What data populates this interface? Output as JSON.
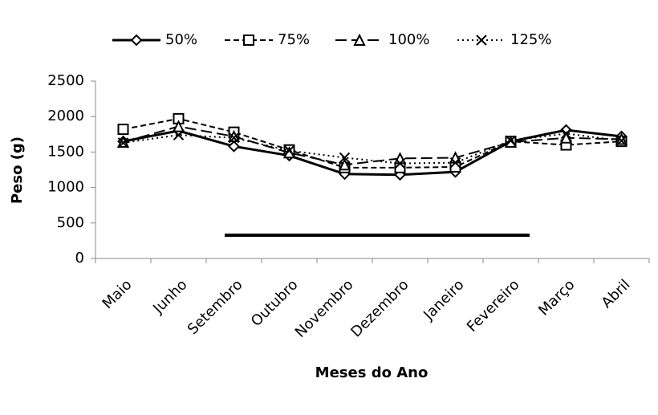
{
  "chart_data": {
    "type": "line",
    "x_label": "Meses do Ano",
    "y_label": "Peso (g)",
    "categories": [
      "Maio",
      "Junho",
      "Setembro",
      "Outubro",
      "Novembro",
      "Dezembro",
      "Janeiro",
      "Fevereiro",
      "Março",
      "Abril"
    ],
    "series": [
      {
        "name": "50%",
        "color": "#000000",
        "line_style": "solid",
        "marker": "diamond",
        "values": [
          1650,
          1800,
          1580,
          1450,
          1190,
          1180,
          1220,
          1650,
          1810,
          1720
        ]
      },
      {
        "name": "75%",
        "color": "#000000",
        "line_style": "dashed",
        "marker": "square",
        "values": [
          1820,
          1970,
          1780,
          1530,
          1280,
          1280,
          1290,
          1650,
          1600,
          1650
        ]
      },
      {
        "name": "100%",
        "color": "#000000",
        "line_style": "longdash",
        "marker": "triangle",
        "values": [
          1640,
          1860,
          1720,
          1490,
          1320,
          1410,
          1420,
          1640,
          1700,
          1680
        ]
      },
      {
        "name": "125%",
        "color": "#000000",
        "line_style": "dotted",
        "marker": "x",
        "values": [
          1630,
          1740,
          1700,
          1520,
          1420,
          1340,
          1350,
          1660,
          1760,
          1660
        ]
      }
    ],
    "ylim": [
      0,
      2500
    ],
    "yticks": [
      0,
      500,
      1000,
      1500,
      2000,
      2500
    ],
    "grid": false,
    "legend": "top"
  }
}
